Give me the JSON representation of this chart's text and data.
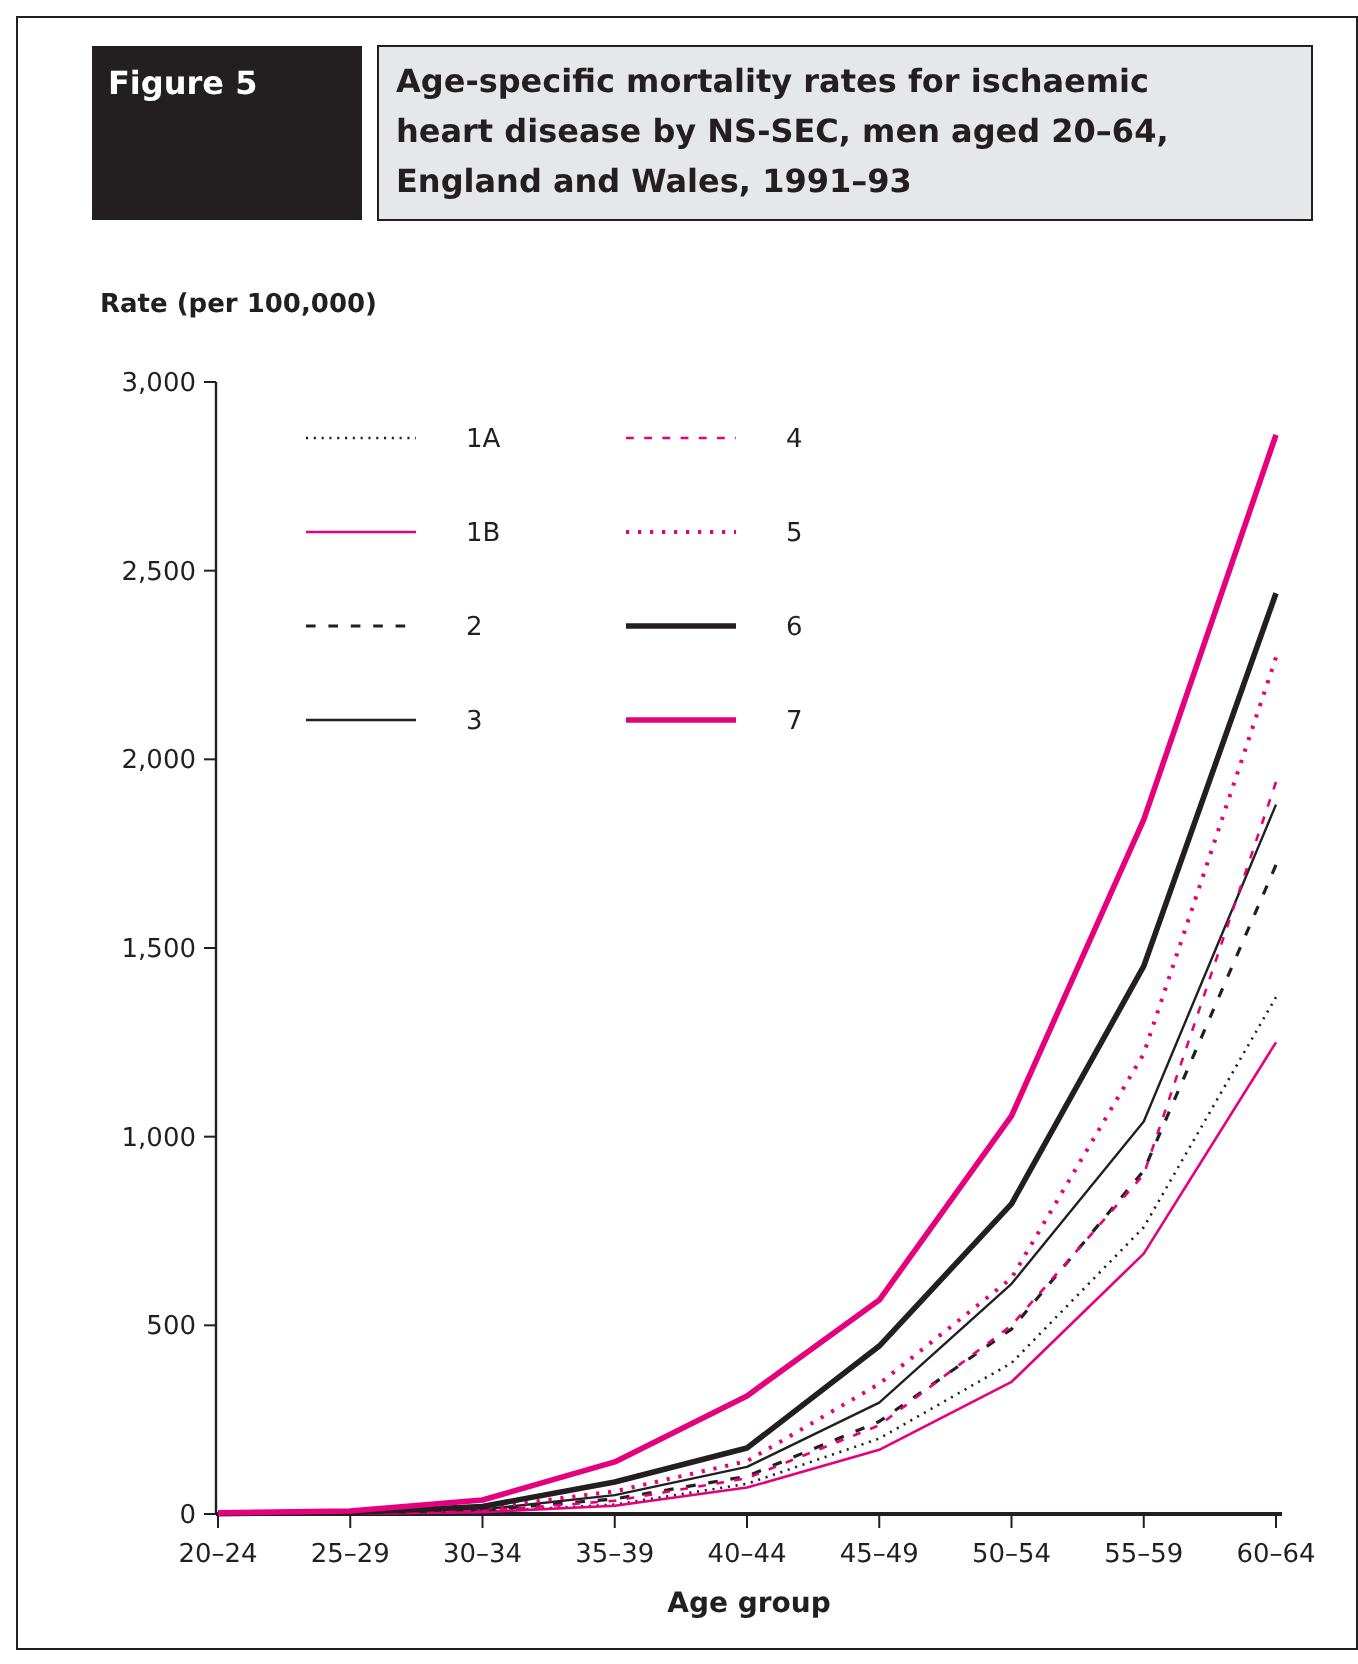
{
  "chart_data": {
    "type": "line",
    "title": "Age-specific mortality rates for ischaemic heart disease by NS-SEC, men aged 20–64, England and Wales, 1991–93",
    "annotations": [
      "Figure 5"
    ],
    "ylabel": "Rate (per 100,000)",
    "xlabel": "Age group",
    "categories": [
      "20–24",
      "25–29",
      "30–34",
      "35–39",
      "40–44",
      "45–49",
      "50–54",
      "55–59",
      "60–64"
    ],
    "ylim": [
      0,
      3000
    ],
    "yticks": [
      {
        "value": 0,
        "label": "0"
      },
      {
        "value": 500,
        "label": "500"
      },
      {
        "value": 1000,
        "label": "1,000"
      },
      {
        "value": 1500,
        "label": "1,500"
      },
      {
        "value": 2000,
        "label": "2,000"
      },
      {
        "value": 2500,
        "label": "2,500"
      },
      {
        "value": 3000,
        "label": "3,000"
      }
    ],
    "grid": false,
    "legend": "top left",
    "marker": "none",
    "series": [
      {
        "name": "1A",
        "color": "#231f20",
        "line_style": "dotted",
        "values": [
          0,
          1,
          6,
          25,
          80,
          200,
          400,
          760,
          1370
        ]
      },
      {
        "name": "1B",
        "color": "#e5007e",
        "line_style": "solid",
        "values": [
          0,
          1,
          5,
          22,
          70,
          170,
          350,
          690,
          1250
        ]
      },
      {
        "name": "2",
        "color": "#231f20",
        "line_style": "dashed",
        "values": [
          1,
          2,
          10,
          40,
          100,
          245,
          490,
          910,
          1720
        ]
      },
      {
        "name": "3",
        "color": "#231f20",
        "line_style": "solid",
        "values": [
          1,
          3,
          12,
          50,
          125,
          295,
          610,
          1040,
          1880
        ]
      },
      {
        "name": "4",
        "color": "#e5007e",
        "line_style": "dashed",
        "values": [
          1,
          2,
          8,
          35,
          95,
          235,
          500,
          900,
          1940
        ]
      },
      {
        "name": "5",
        "color": "#e5007e",
        "line_style": "dotted",
        "values": [
          1,
          3,
          15,
          60,
          140,
          345,
          625,
          1220,
          2270
        ]
      },
      {
        "name": "6",
        "color": "#231f20",
        "line_style": "solid",
        "values": [
          1,
          4,
          20,
          85,
          175,
          445,
          822,
          1452,
          2440
        ]
      },
      {
        "name": "7",
        "color": "#e5007e",
        "line_style": "solid",
        "values": [
          3,
          8,
          37,
          138,
          313,
          567,
          1055,
          1840,
          2860
        ]
      }
    ]
  }
}
